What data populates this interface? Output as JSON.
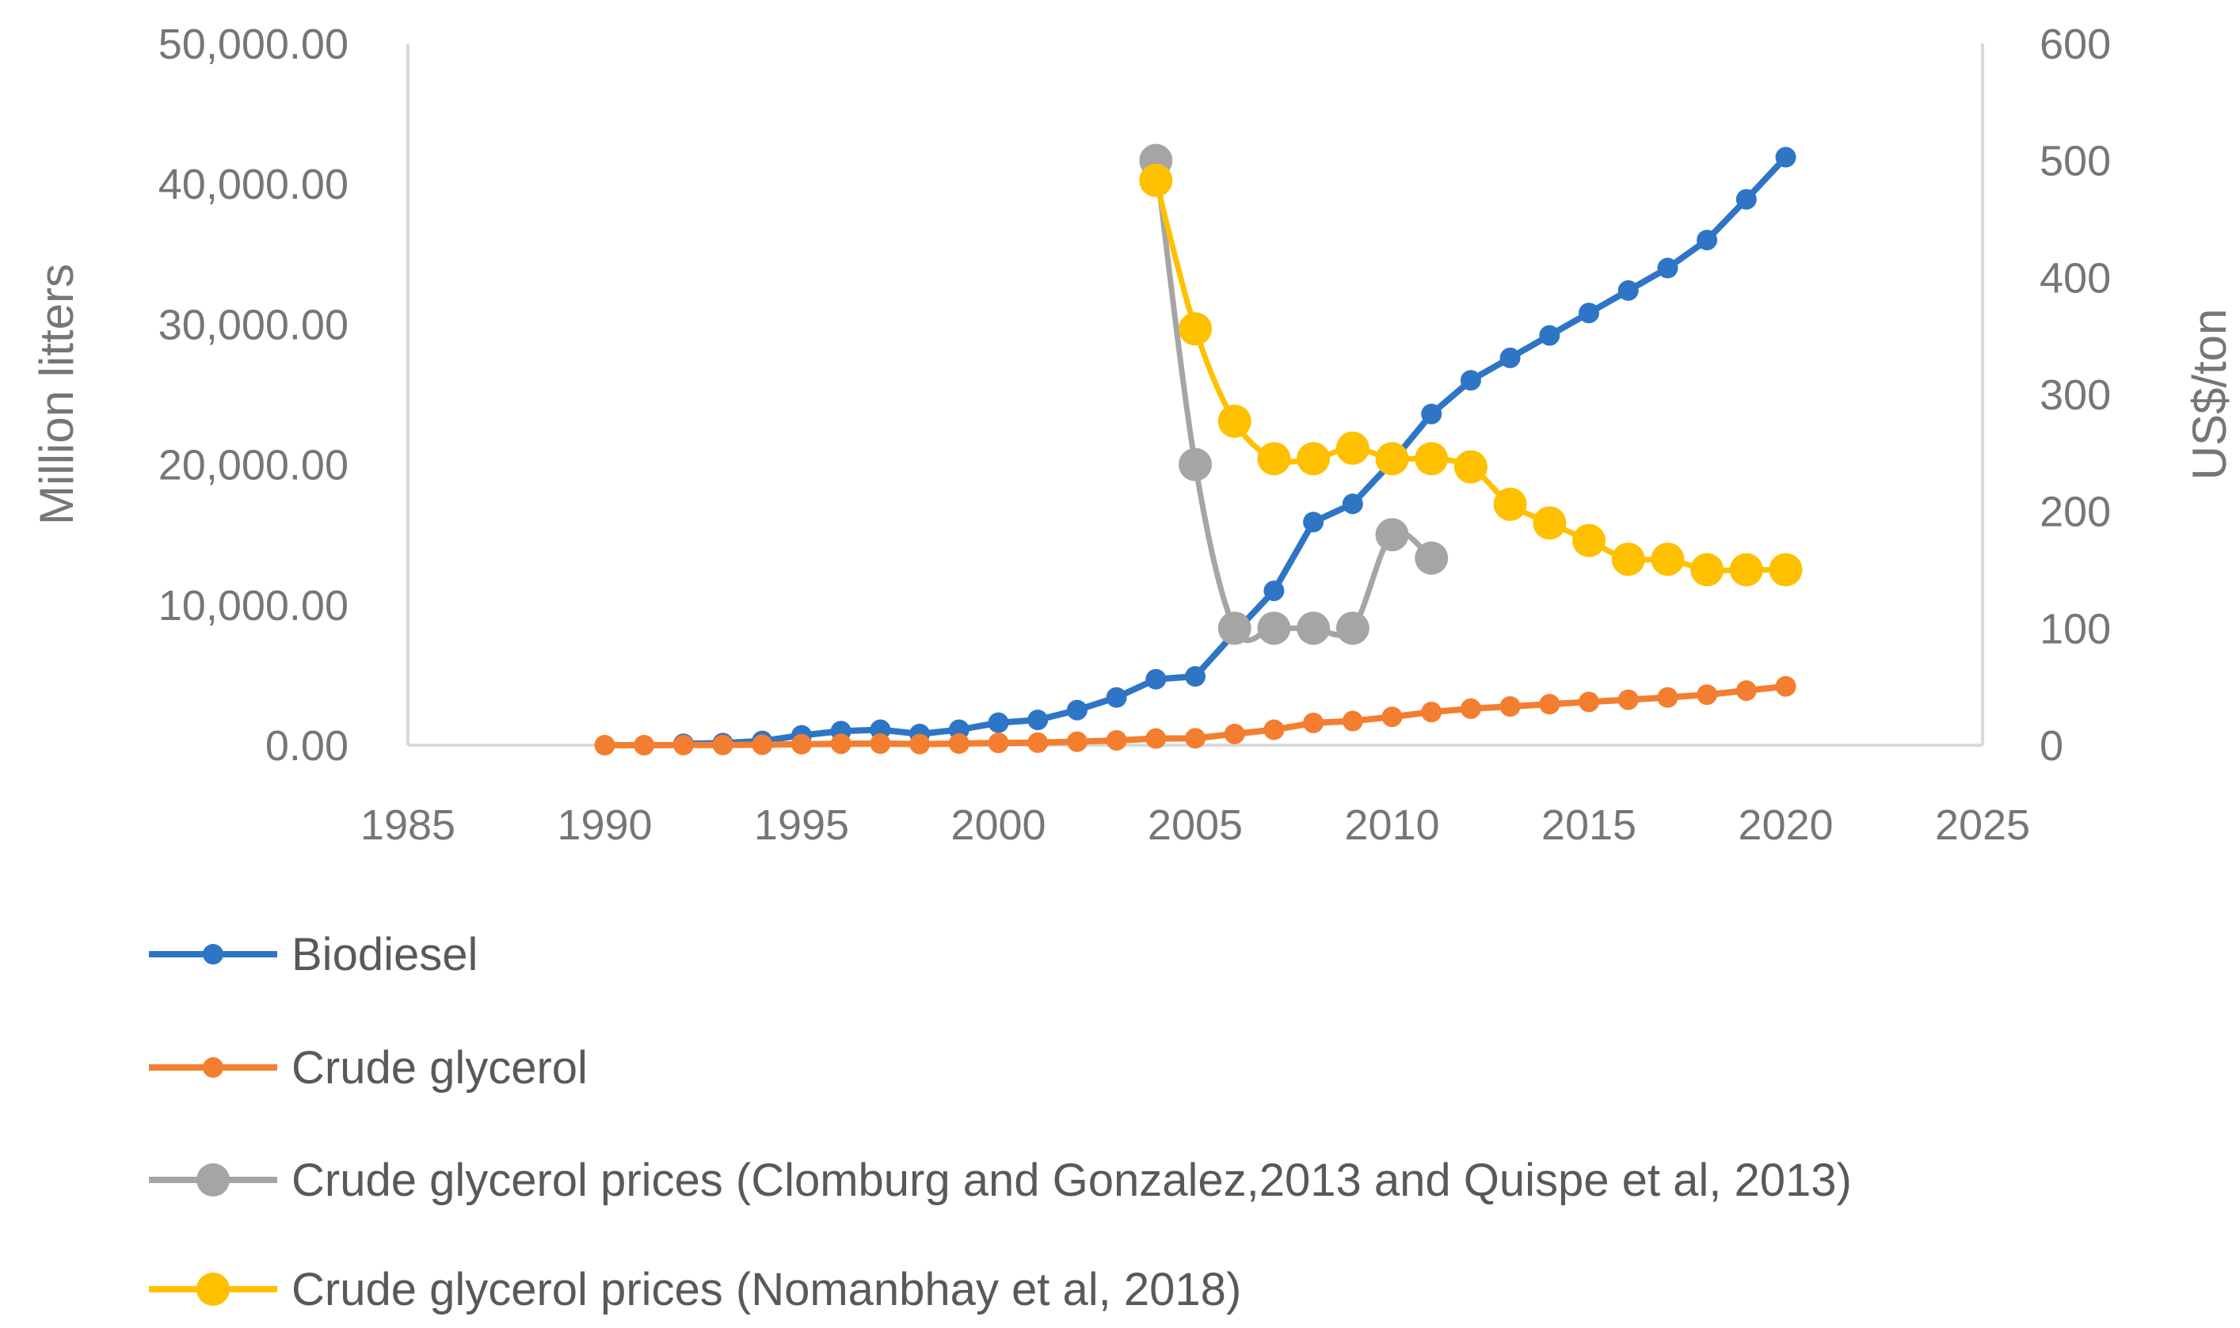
{
  "chart_data": {
    "type": "line",
    "title": "",
    "xlabel": "",
    "ylabel": "Million litters",
    "y2label": "US$/ton",
    "xlim": [
      1985,
      2025
    ],
    "ylim": [
      0,
      50000
    ],
    "y2lim": [
      0,
      600
    ],
    "x_ticks": [
      "1985",
      "1990",
      "1995",
      "2000",
      "2005",
      "2010",
      "2015",
      "2020",
      "2025"
    ],
    "y_ticks": [
      "0.00",
      "10,000.00",
      "20,000.00",
      "30,000.00",
      "40,000.00",
      "50,000.00"
    ],
    "y2_ticks": [
      "0",
      "100",
      "200",
      "300",
      "400",
      "500",
      "600"
    ],
    "grid": false,
    "legend_position": "bottom",
    "series": [
      {
        "name": "Biodiesel",
        "axis": "left",
        "color": "#2E75C6",
        "smooth": false,
        "x": [
          1992,
          1993,
          1994,
          1995,
          1996,
          1997,
          1998,
          1999,
          2000,
          2001,
          2002,
          2003,
          2004,
          2005,
          2006,
          2007,
          2008,
          2009,
          2010,
          2011,
          2012,
          2013,
          2014,
          2015,
          2016,
          2017,
          2018,
          2019,
          2020
        ],
        "values": [
          100,
          150,
          300,
          700,
          1000,
          1100,
          800,
          1100,
          1600,
          1800,
          2500,
          3400,
          4700,
          4900,
          8000,
          11000,
          15900,
          17200,
          20200,
          23600,
          26000,
          27600,
          29200,
          30800,
          32400,
          34000,
          36000,
          38900,
          41900
        ]
      },
      {
        "name": "Crude glycerol",
        "axis": "left",
        "color": "#F47E30",
        "smooth": false,
        "x": [
          1990,
          1991,
          1992,
          1993,
          1994,
          1995,
          1996,
          1997,
          1998,
          1999,
          2000,
          2001,
          2002,
          2003,
          2004,
          2005,
          2006,
          2007,
          2008,
          2009,
          2010,
          2011,
          2012,
          2013,
          2014,
          2015,
          2016,
          2017,
          2018,
          2019,
          2020
        ],
        "values": [
          0,
          0,
          10,
          15,
          30,
          70,
          100,
          110,
          80,
          110,
          160,
          180,
          250,
          340,
          470,
          490,
          800,
          1100,
          1590,
          1720,
          2020,
          2360,
          2600,
          2760,
          2920,
          3080,
          3240,
          3400,
          3600,
          3890,
          4190
        ]
      },
      {
        "name": "Crude glycerol prices (Clomburg and Gonzalez,2013 and Quispe et al, 2013)",
        "axis": "right",
        "color": "#A5A5A5",
        "smooth": true,
        "x": [
          2004,
          2005,
          2006,
          2007,
          2008,
          2009,
          2010,
          2011
        ],
        "values": [
          500,
          240,
          100,
          100,
          100,
          100,
          180,
          160
        ]
      },
      {
        "name": "Crude glycerol prices (Nomanbhay et al, 2018)",
        "axis": "right",
        "color": "#FFC000",
        "smooth": true,
        "x": [
          2004,
          2005,
          2006,
          2007,
          2008,
          2009,
          2010,
          2011,
          2012,
          2013,
          2014,
          2015,
          2016,
          2017,
          2018,
          2019,
          2020
        ],
        "values": [
          483,
          356,
          277,
          245,
          245,
          254,
          245,
          245,
          238,
          206,
          190,
          175,
          159,
          159,
          150,
          150,
          150
        ]
      }
    ]
  }
}
